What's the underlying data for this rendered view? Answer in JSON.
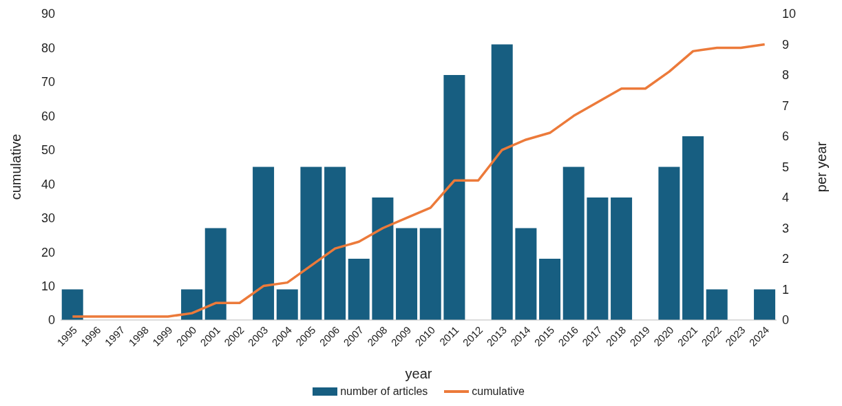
{
  "chart_data": {
    "type": "bar",
    "xlabel": "year",
    "ylabel": "cumulative",
    "y2label": "per year",
    "categories": [
      "1995",
      "1996",
      "1997",
      "1998",
      "1999",
      "2000",
      "2001",
      "2002",
      "2003",
      "2004",
      "2005",
      "2006",
      "2007",
      "2008",
      "2009",
      "2010",
      "2011",
      "2012",
      "2013",
      "2014",
      "2015",
      "2016",
      "2017",
      "2018",
      "2019",
      "2020",
      "2021",
      "2022",
      "2023",
      "2024"
    ],
    "series": [
      {
        "name": "number of articles",
        "axis": "y2",
        "color": "#175e81",
        "values": [
          1,
          0,
          0,
          0,
          0,
          1,
          3,
          0,
          5,
          1,
          5,
          5,
          2,
          4,
          3,
          3,
          8,
          0,
          9,
          3,
          2,
          5,
          4,
          4,
          0,
          5,
          6,
          1,
          0,
          1
        ]
      },
      {
        "name": "cumulative",
        "type": "line",
        "color": "#ec7a3a",
        "values": [
          1,
          1,
          1,
          1,
          1,
          2,
          5,
          5,
          10,
          11,
          16,
          21,
          23,
          27,
          30,
          33,
          41,
          41,
          50,
          53,
          55,
          60,
          64,
          68,
          68,
          73,
          79,
          80,
          80,
          81
        ]
      }
    ],
    "ylim": [
      0,
      90
    ],
    "yticks": [
      0,
      10,
      20,
      30,
      40,
      50,
      60,
      70,
      80,
      90
    ],
    "y2lim": [
      0,
      10
    ],
    "y2ticks": [
      0,
      1,
      2,
      3,
      4,
      5,
      6,
      7,
      8,
      9,
      10
    ],
    "grid": false,
    "legend": "bottom",
    "marker": "none",
    "line_style": "solid"
  }
}
